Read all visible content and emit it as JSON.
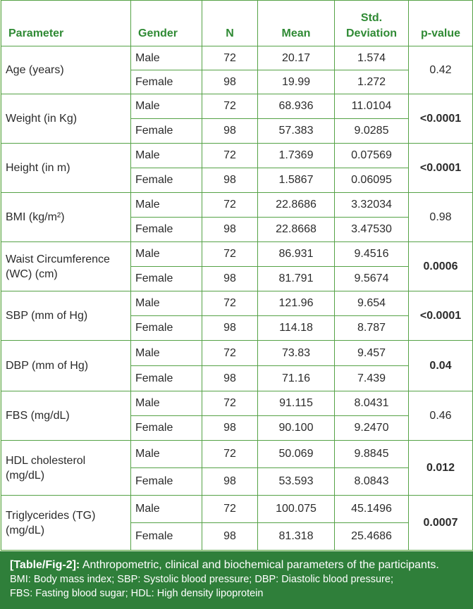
{
  "table": {
    "headers": {
      "parameter": "Parameter",
      "gender": "Gender",
      "n": "N",
      "mean": "Mean",
      "sd": "Std. Deviation",
      "pvalue": "p-value"
    },
    "rows": [
      {
        "param": "Age (years)",
        "pvalue": "0.42",
        "bold": false,
        "male": {
          "gender": "Male",
          "n": "72",
          "mean": "20.17",
          "sd": "1.574"
        },
        "female": {
          "gender": "Female",
          "n": "98",
          "mean": "19.99",
          "sd": "1.272"
        }
      },
      {
        "param": "Weight (in Kg)",
        "pvalue": "<0.0001",
        "bold": true,
        "male": {
          "gender": "Male",
          "n": "72",
          "mean": "68.936",
          "sd": "11.0104"
        },
        "female": {
          "gender": "Female",
          "n": "98",
          "mean": "57.383",
          "sd": "9.0285"
        }
      },
      {
        "param": "Height (in m)",
        "pvalue": "<0.0001",
        "bold": true,
        "male": {
          "gender": "Male",
          "n": "72",
          "mean": "1.7369",
          "sd": "0.07569"
        },
        "female": {
          "gender": "Female",
          "n": "98",
          "mean": "1.5867",
          "sd": "0.06095"
        }
      },
      {
        "param": "BMI (kg/m²)",
        "pvalue": "0.98",
        "bold": false,
        "male": {
          "gender": "Male",
          "n": "72",
          "mean": "22.8686",
          "sd": "3.32034"
        },
        "female": {
          "gender": "Female",
          "n": "98",
          "mean": "22.8668",
          "sd": "3.47530"
        }
      },
      {
        "param": "Waist Circumference (WC) (cm)",
        "pvalue": "0.0006",
        "bold": true,
        "male": {
          "gender": "Male",
          "n": "72",
          "mean": "86.931",
          "sd": "9.4516"
        },
        "female": {
          "gender": "Female",
          "n": "98",
          "mean": "81.791",
          "sd": "9.5674"
        }
      },
      {
        "param": "SBP (mm of Hg)",
        "pvalue": "<0.0001",
        "bold": true,
        "male": {
          "gender": "Male",
          "n": "72",
          "mean": "121.96",
          "sd": "9.654"
        },
        "female": {
          "gender": "Female",
          "n": "98",
          "mean": "114.18",
          "sd": "8.787"
        }
      },
      {
        "param": "DBP (mm of Hg)",
        "pvalue": "0.04",
        "bold": true,
        "male": {
          "gender": "Male",
          "n": "72",
          "mean": "73.83",
          "sd": "9.457"
        },
        "female": {
          "gender": "Female",
          "n": "98",
          "mean": "71.16",
          "sd": "7.439"
        }
      },
      {
        "param": "FBS (mg/dL)",
        "pvalue": "0.46",
        "bold": false,
        "male": {
          "gender": "Male",
          "n": "72",
          "mean": "91.115",
          "sd": "8.0431"
        },
        "female": {
          "gender": "Female",
          "n": "98",
          "mean": "90.100",
          "sd": "9.2470"
        }
      },
      {
        "param": "HDL cholesterol (mg/dL)",
        "pvalue": "0.012",
        "bold": true,
        "male": {
          "gender": "Male",
          "n": "72",
          "mean": "50.069",
          "sd": "9.8845"
        },
        "female": {
          "gender": "Female",
          "n": "98",
          "mean": "53.593",
          "sd": "8.0843"
        }
      },
      {
        "param": "Triglycerides (TG) (mg/dL)",
        "pvalue": "0.0007",
        "bold": true,
        "male": {
          "gender": "Male",
          "n": "72",
          "mean": "100.075",
          "sd": "45.1496"
        },
        "female": {
          "gender": "Female",
          "n": "98",
          "mean": "81.318",
          "sd": "25.4686"
        }
      }
    ]
  },
  "caption": {
    "label": "[Table/Fig-2]:",
    "text": "Anthropometric, clinical and biochemical parameters of the participants.",
    "line2": "BMI: Body mass index; SBP: Systolic blood pressure; DBP: Diastolic blood pressure;",
    "line3": "FBS: Fasting blood sugar; HDL: High density lipoprotein"
  },
  "colors": {
    "border": "#55a246",
    "header_text": "#2f8a34",
    "caption_bg": "#2f7f3a",
    "page_bg": "#e9f2d8"
  }
}
